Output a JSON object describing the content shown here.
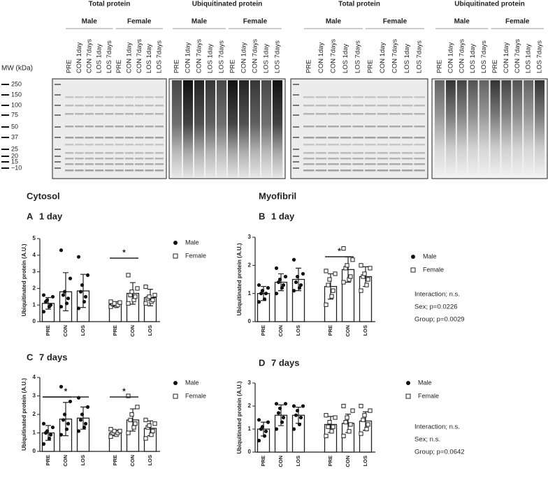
{
  "blots": {
    "mw_label": "MW (kDa)",
    "mw": [
      "250",
      "150",
      "100",
      "75",
      "50",
      "37",
      "25",
      "20",
      "15",
      "~10"
    ],
    "panels": [
      {
        "title": "Total protein",
        "groups": [
          {
            "name": "Male",
            "lanes": [
              "PRE",
              "CON 1day",
              "CON 7days",
              "LOS 1day",
              "LOS 7days"
            ]
          },
          {
            "name": "Female",
            "lanes": [
              "PRE",
              "CON 1day",
              "CON 7days",
              "LOS 1day",
              "LOS 7days"
            ]
          }
        ]
      },
      {
        "title": "Ubiquitinated protein",
        "groups": [
          {
            "name": "Male",
            "lanes": [
              "PRE",
              "CON 1day",
              "CON 7days",
              "LOS 1day",
              "LOS 7days"
            ]
          },
          {
            "name": "Female",
            "lanes": [
              "PRE",
              "CON 1day",
              "CON 7days",
              "LOS 1day",
              "LOS 7days"
            ]
          }
        ]
      },
      {
        "title": "Total protein",
        "groups": [
          {
            "name": "Male",
            "lanes": [
              "PRE",
              "CON 1day",
              "CON 7days",
              "LOS 1day",
              "LOS 7days"
            ]
          },
          {
            "name": "Female",
            "lanes": [
              "PRE",
              "CON 1day",
              "CON 7days",
              "LOS 1day",
              "LOS 7days"
            ]
          }
        ]
      },
      {
        "title": "Ubiquitinated protein",
        "groups": [
          {
            "name": "Male",
            "lanes": [
              "PRE",
              "CON 1day",
              "CON 7days",
              "LOS 1day",
              "LOS 7days"
            ]
          },
          {
            "name": "Female",
            "lanes": [
              "PRE",
              "CON 1day",
              "CON 7days",
              "LOS 1day",
              "LOS 7days"
            ]
          }
        ]
      }
    ]
  },
  "chart_data": [
    {
      "type": "bar",
      "section": "Cytosol",
      "panel": "A",
      "title": "1 day",
      "ylabel": "Ubiquitinated protein (A.U.)",
      "categories": [
        "PRE",
        "CON",
        "LOS"
      ],
      "ylim": [
        0,
        5
      ],
      "yticks": [
        0,
        1,
        2,
        3,
        4,
        5
      ],
      "series": [
        {
          "name": "Male",
          "marker": "circle",
          "values": [
            1.1,
            1.8,
            1.85
          ],
          "errors": [
            0.35,
            1.15,
            1.0
          ],
          "points": [
            [
              0.6,
              0.9,
              1.0,
              1.2,
              1.3,
              1.5,
              1.6
            ],
            [
              0.9,
              1.1,
              1.4,
              1.6,
              1.8,
              2.6,
              4.3
            ],
            [
              0.8,
              1.2,
              1.5,
              1.8,
              2.2,
              2.8,
              3.9
            ]
          ]
        },
        {
          "name": "Female",
          "marker": "square",
          "values": [
            1.05,
            1.7,
            1.45
          ],
          "errors": [
            0.15,
            0.65,
            0.5
          ],
          "points": [
            [
              0.9,
              0.95,
              1.0,
              1.05,
              1.1,
              1.15,
              1.2
            ],
            [
              1.1,
              1.3,
              1.5,
              1.6,
              1.8,
              2.0,
              2.8
            ],
            [
              1.1,
              1.2,
              1.3,
              1.4,
              1.5,
              1.6,
              2.1
            ]
          ]
        }
      ],
      "significance": [
        {
          "series": 1,
          "from": 0,
          "to": 1,
          "label": "*"
        }
      ]
    },
    {
      "type": "bar",
      "section": "Myofibril",
      "panel": "B",
      "title": "1 day",
      "ylabel": "Ubiquitinated protein (A.U.)",
      "categories": [
        "PRE",
        "CON",
        "LOS"
      ],
      "ylim": [
        0,
        3
      ],
      "yticks": [
        0,
        1,
        2,
        3
      ],
      "series": [
        {
          "name": "Male",
          "marker": "circle",
          "values": [
            1.0,
            1.4,
            1.5
          ],
          "errors": [
            0.25,
            0.3,
            0.4
          ],
          "points": [
            [
              0.7,
              0.8,
              1.0,
              1.0,
              1.1,
              1.2,
              1.3
            ],
            [
              1.0,
              1.2,
              1.3,
              1.4,
              1.5,
              1.6,
              1.9
            ],
            [
              1.1,
              1.2,
              1.3,
              1.4,
              1.6,
              1.7,
              2.2
            ]
          ]
        },
        {
          "name": "Female",
          "marker": "square",
          "values": [
            1.25,
            1.85,
            1.6
          ],
          "errors": [
            0.45,
            0.45,
            0.35
          ],
          "points": [
            [
              0.6,
              0.9,
              1.1,
              1.3,
              1.5,
              1.7,
              1.8
            ],
            [
              1.4,
              1.5,
              1.6,
              1.9,
              2.0,
              2.2,
              2.6
            ],
            [
              1.1,
              1.3,
              1.5,
              1.6,
              1.7,
              1.9,
              2.0
            ]
          ]
        }
      ],
      "significance": [
        {
          "series": 1,
          "from": 0,
          "to": 1,
          "label": "*"
        }
      ],
      "stats": [
        "Interaction; n.s.",
        "Sex; p=0.0226",
        "Group; p=0.0029"
      ]
    },
    {
      "type": "bar",
      "panel": "C",
      "title": "7 days",
      "ylabel": "Ubiquitinated protein (A.U.)",
      "categories": [
        "PRE",
        "CON",
        "LOS"
      ],
      "ylim": [
        0,
        4
      ],
      "yticks": [
        0,
        1,
        2,
        3,
        4
      ],
      "series": [
        {
          "name": "Male",
          "marker": "circle",
          "values": [
            1.0,
            1.75,
            1.8
          ],
          "errors": [
            0.4,
            0.9,
            0.6
          ],
          "points": [
            [
              0.4,
              0.7,
              0.9,
              1.0,
              1.1,
              1.3,
              1.5
            ],
            [
              0.9,
              1.2,
              1.5,
              1.7,
              2.0,
              2.7,
              3.5
            ],
            [
              1.1,
              1.3,
              1.5,
              1.7,
              2.0,
              2.4,
              2.9
            ]
          ]
        },
        {
          "name": "Female",
          "marker": "square",
          "values": [
            1.0,
            1.7,
            1.25
          ],
          "errors": [
            0.15,
            0.6,
            0.4
          ],
          "points": [
            [
              0.8,
              0.9,
              1.0,
              1.0,
              1.1,
              1.1,
              1.2
            ],
            [
              1.0,
              1.3,
              1.5,
              1.7,
              2.0,
              2.4,
              3.0
            ],
            [
              0.7,
              0.9,
              1.1,
              1.3,
              1.4,
              1.5,
              1.7
            ]
          ]
        }
      ],
      "significance": [
        {
          "series": 0,
          "from": 0,
          "to": 2,
          "label": "*"
        },
        {
          "series": 0,
          "from": 0,
          "to": 1
        },
        {
          "series": 1,
          "from": 0,
          "to": 1,
          "label": "*"
        }
      ]
    },
    {
      "type": "bar",
      "panel": "D",
      "title": "7 days",
      "ylabel": "Ubiquitinated protein (A.U.)",
      "categories": [
        "PRE",
        "CON",
        "LOS"
      ],
      "ylim": [
        0,
        3
      ],
      "yticks": [
        0,
        1,
        2,
        3
      ],
      "series": [
        {
          "name": "Male",
          "marker": "circle",
          "values": [
            1.0,
            1.6,
            1.6
          ],
          "errors": [
            0.3,
            0.45,
            0.35
          ],
          "points": [
            [
              0.5,
              0.7,
              0.9,
              1.0,
              1.1,
              1.3,
              1.4
            ],
            [
              1.0,
              1.3,
              1.5,
              1.7,
              1.9,
              2.1,
              2.1
            ],
            [
              1.0,
              1.2,
              1.5,
              1.6,
              1.8,
              2.0,
              2.0
            ]
          ]
        },
        {
          "name": "Female",
          "marker": "square",
          "values": [
            1.2,
            1.25,
            1.35
          ],
          "errors": [
            0.35,
            0.4,
            0.4
          ],
          "points": [
            [
              0.7,
              0.9,
              1.1,
              1.1,
              1.3,
              1.5,
              1.6
            ],
            [
              0.7,
              0.9,
              1.2,
              1.3,
              1.5,
              1.8,
              2.0
            ],
            [
              0.8,
              1.0,
              1.2,
              1.4,
              1.6,
              1.8,
              2.0
            ]
          ]
        }
      ],
      "stats": [
        "Interaction; n.s.",
        "Sex; n.s.",
        "Group; p=0.0642"
      ]
    }
  ]
}
